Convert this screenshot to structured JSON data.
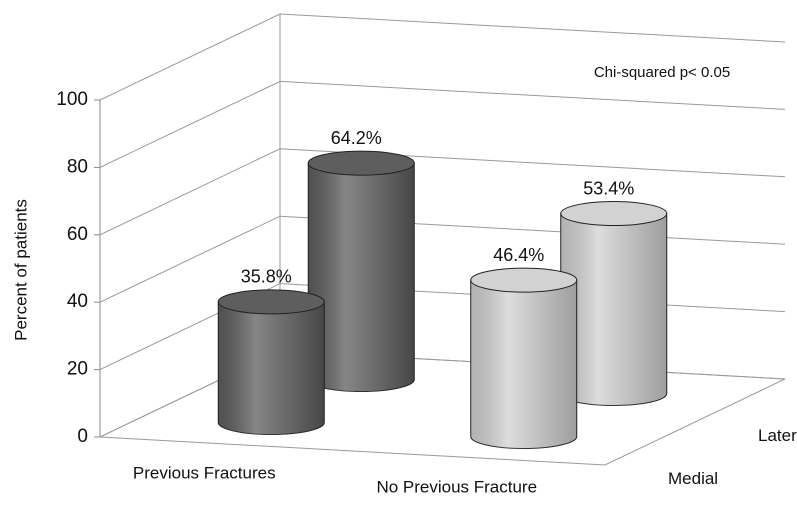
{
  "chart_data": {
    "type": "bar3d",
    "y_label": "Percent of patients",
    "annotation": "Chi-squared p< 0.05",
    "categories": [
      "Previous Fractures",
      "No Previous Fracture"
    ],
    "colors": [
      "#5e5e5e",
      "#d2d2d2"
    ],
    "series": [
      {
        "name": "Medial",
        "values": [
          35.8,
          46.4
        ],
        "value_labels": [
          "35.8%",
          "46.4%"
        ]
      },
      {
        "name": "Lateral",
        "values": [
          64.2,
          53.4
        ],
        "value_labels": [
          "64.2%",
          "53.4%"
        ]
      }
    ],
    "ylim": [
      0,
      100
    ],
    "yticks": [
      0,
      20,
      40,
      60,
      80,
      100
    ],
    "grid": true
  }
}
